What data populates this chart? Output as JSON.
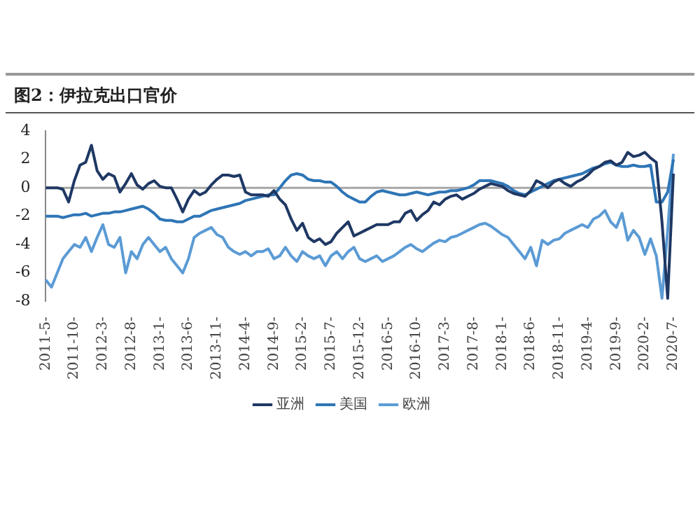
{
  "chart_data": {
    "type": "line",
    "title": "图2：伊拉克出口官价",
    "categories": [
      "2011-5-",
      null,
      null,
      null,
      null,
      "2011-10-",
      null,
      null,
      null,
      null,
      "2012-3-",
      null,
      null,
      null,
      null,
      "2012-8-",
      null,
      null,
      null,
      null,
      "2013-1-",
      null,
      null,
      null,
      null,
      "2013-6-",
      null,
      null,
      null,
      null,
      "2013-11-",
      null,
      null,
      null,
      null,
      "2014-4-",
      null,
      null,
      null,
      null,
      "2014-9-",
      null,
      null,
      null,
      null,
      "2015-2-",
      null,
      null,
      null,
      null,
      "2015-7-",
      null,
      null,
      null,
      null,
      "2015-12-",
      null,
      null,
      null,
      null,
      "2016-5-",
      null,
      null,
      null,
      null,
      "2016-10-",
      null,
      null,
      null,
      null,
      "2017-3-",
      null,
      null,
      null,
      null,
      "2017-8-",
      null,
      null,
      null,
      null,
      "2018-1-",
      null,
      null,
      null,
      null,
      "2018-6-",
      null,
      null,
      null,
      null,
      "2018-11-",
      null,
      null,
      null,
      null,
      "2019-4-",
      null,
      null,
      null,
      null,
      "2019-9-",
      null,
      null,
      null,
      null,
      "2020-2-",
      null,
      null,
      null,
      null,
      "2020-7-"
    ],
    "series": [
      {
        "name": "亚洲",
        "color": "#1f3864",
        "values": [
          0,
          0,
          0,
          -0.1,
          -1,
          0.5,
          1.6,
          1.8,
          3,
          1.2,
          0.6,
          1,
          0.8,
          -0.3,
          0.3,
          1,
          0.2,
          -0.1,
          0.3,
          0.5,
          0.1,
          0,
          0,
          -0.8,
          -1.7,
          -0.8,
          -0.2,
          -0.5,
          -0.3,
          0.2,
          0.6,
          0.9,
          0.9,
          0.8,
          0.9,
          -0.3,
          -0.5,
          -0.5,
          -0.5,
          -0.6,
          -0.2,
          -0.8,
          -1.2,
          -2.2,
          -3,
          -2.5,
          -3.5,
          -3.8,
          -3.6,
          -4,
          -3.8,
          -3.2,
          -2.8,
          -2.4,
          -3.4,
          -3.2,
          -3,
          -2.8,
          -2.6,
          -2.6,
          -2.6,
          -2.4,
          -2.4,
          -1.8,
          -1.6,
          -2.3,
          -1.9,
          -1.6,
          -1,
          -1.2,
          -0.8,
          -0.6,
          -0.5,
          -0.8,
          -0.6,
          -0.4,
          -0.1,
          0.1,
          0.3,
          0.2,
          0.1,
          -0.2,
          -0.4,
          -0.5,
          -0.6,
          -0.2,
          0.5,
          0.3,
          0,
          0.4,
          0.6,
          0.3,
          0.1,
          0.4,
          0.6,
          0.9,
          1.3,
          1.5,
          1.8,
          1.9,
          1.6,
          1.8,
          2.5,
          2.2,
          2.3,
          2.5,
          2.1,
          1.8,
          -2.4,
          -7.8,
          1
        ]
      },
      {
        "name": "美国",
        "color": "#2e75b6",
        "values": [
          -2,
          -2,
          -2,
          -2.1,
          -2,
          -1.9,
          -1.9,
          -1.8,
          -2,
          -1.9,
          -1.8,
          -1.8,
          -1.7,
          -1.7,
          -1.6,
          -1.5,
          -1.4,
          -1.3,
          -1.5,
          -1.8,
          -2.2,
          -2.3,
          -2.3,
          -2.4,
          -2.4,
          -2.2,
          -2,
          -2,
          -1.8,
          -1.6,
          -1.5,
          -1.4,
          -1.3,
          -1.2,
          -1.1,
          -0.9,
          -0.8,
          -0.7,
          -0.6,
          -0.5,
          -0.5,
          0,
          0.5,
          0.9,
          1,
          0.9,
          0.6,
          0.5,
          0.5,
          0.4,
          0.4,
          0.1,
          -0.3,
          -0.6,
          -0.8,
          -1,
          -1,
          -0.6,
          -0.3,
          -0.2,
          -0.3,
          -0.4,
          -0.5,
          -0.5,
          -0.4,
          -0.3,
          -0.4,
          -0.5,
          -0.4,
          -0.3,
          -0.3,
          -0.2,
          -0.2,
          -0.1,
          0,
          0.2,
          0.5,
          0.5,
          0.5,
          0.4,
          0.3,
          0.1,
          -0.2,
          -0.4,
          -0.5,
          -0.3,
          -0.1,
          0.1,
          0.3,
          0.5,
          0.6,
          0.7,
          0.8,
          0.9,
          1,
          1.2,
          1.4,
          1.5,
          1.7,
          1.8,
          1.6,
          1.5,
          1.5,
          1.6,
          1.5,
          1.5,
          1.6,
          -1,
          -1,
          -0.3,
          2
        ]
      },
      {
        "name": "欧洲",
        "color": "#5b9bd5",
        "values": [
          -6.5,
          -7,
          -6,
          -5,
          -4.5,
          -4,
          -4.2,
          -3.5,
          -4.5,
          -3.5,
          -2.6,
          -4,
          -4.2,
          -3.5,
          -6,
          -4.5,
          -5,
          -4,
          -3.5,
          -4,
          -4.5,
          -4.2,
          -5,
          -5.5,
          -6,
          -5,
          -3.5,
          -3.2,
          -3,
          -2.8,
          -3.3,
          -3.5,
          -4.2,
          -4.5,
          -4.7,
          -4.5,
          -4.8,
          -4.5,
          -4.5,
          -4.3,
          -5,
          -4.8,
          -4.2,
          -4.8,
          -5.2,
          -4.5,
          -4.8,
          -5,
          -4.8,
          -5.5,
          -4.8,
          -4.5,
          -5,
          -4.5,
          -4.2,
          -5,
          -5.2,
          -5,
          -4.8,
          -5.2,
          -5,
          -4.8,
          -4.5,
          -4.2,
          -4,
          -4.3,
          -4.5,
          -4.2,
          -3.9,
          -3.7,
          -3.8,
          -3.5,
          -3.4,
          -3.2,
          -3,
          -2.8,
          -2.6,
          -2.5,
          -2.7,
          -3,
          -3.3,
          -3.5,
          -4,
          -4.5,
          -5,
          -4.2,
          -5.5,
          -3.7,
          -4,
          -3.7,
          -3.6,
          -3.2,
          -3,
          -2.8,
          -2.6,
          -2.8,
          -2.2,
          -2,
          -1.6,
          -2.4,
          -2.8,
          -1.8,
          -3.7,
          -3,
          -3.5,
          -4.7,
          -3.6,
          -4.8,
          -7.8,
          -3,
          2.4
        ]
      }
    ],
    "ylim": [
      -8,
      4
    ],
    "yticks": [
      4,
      2,
      0,
      -2,
      -4,
      -6,
      -8
    ],
    "ref_lines": [
      {
        "axis": "y",
        "value": 0,
        "color": "#a6a6a6"
      }
    ],
    "grid": false,
    "legend": "bottom",
    "marker": "none",
    "line_style": "solid"
  }
}
